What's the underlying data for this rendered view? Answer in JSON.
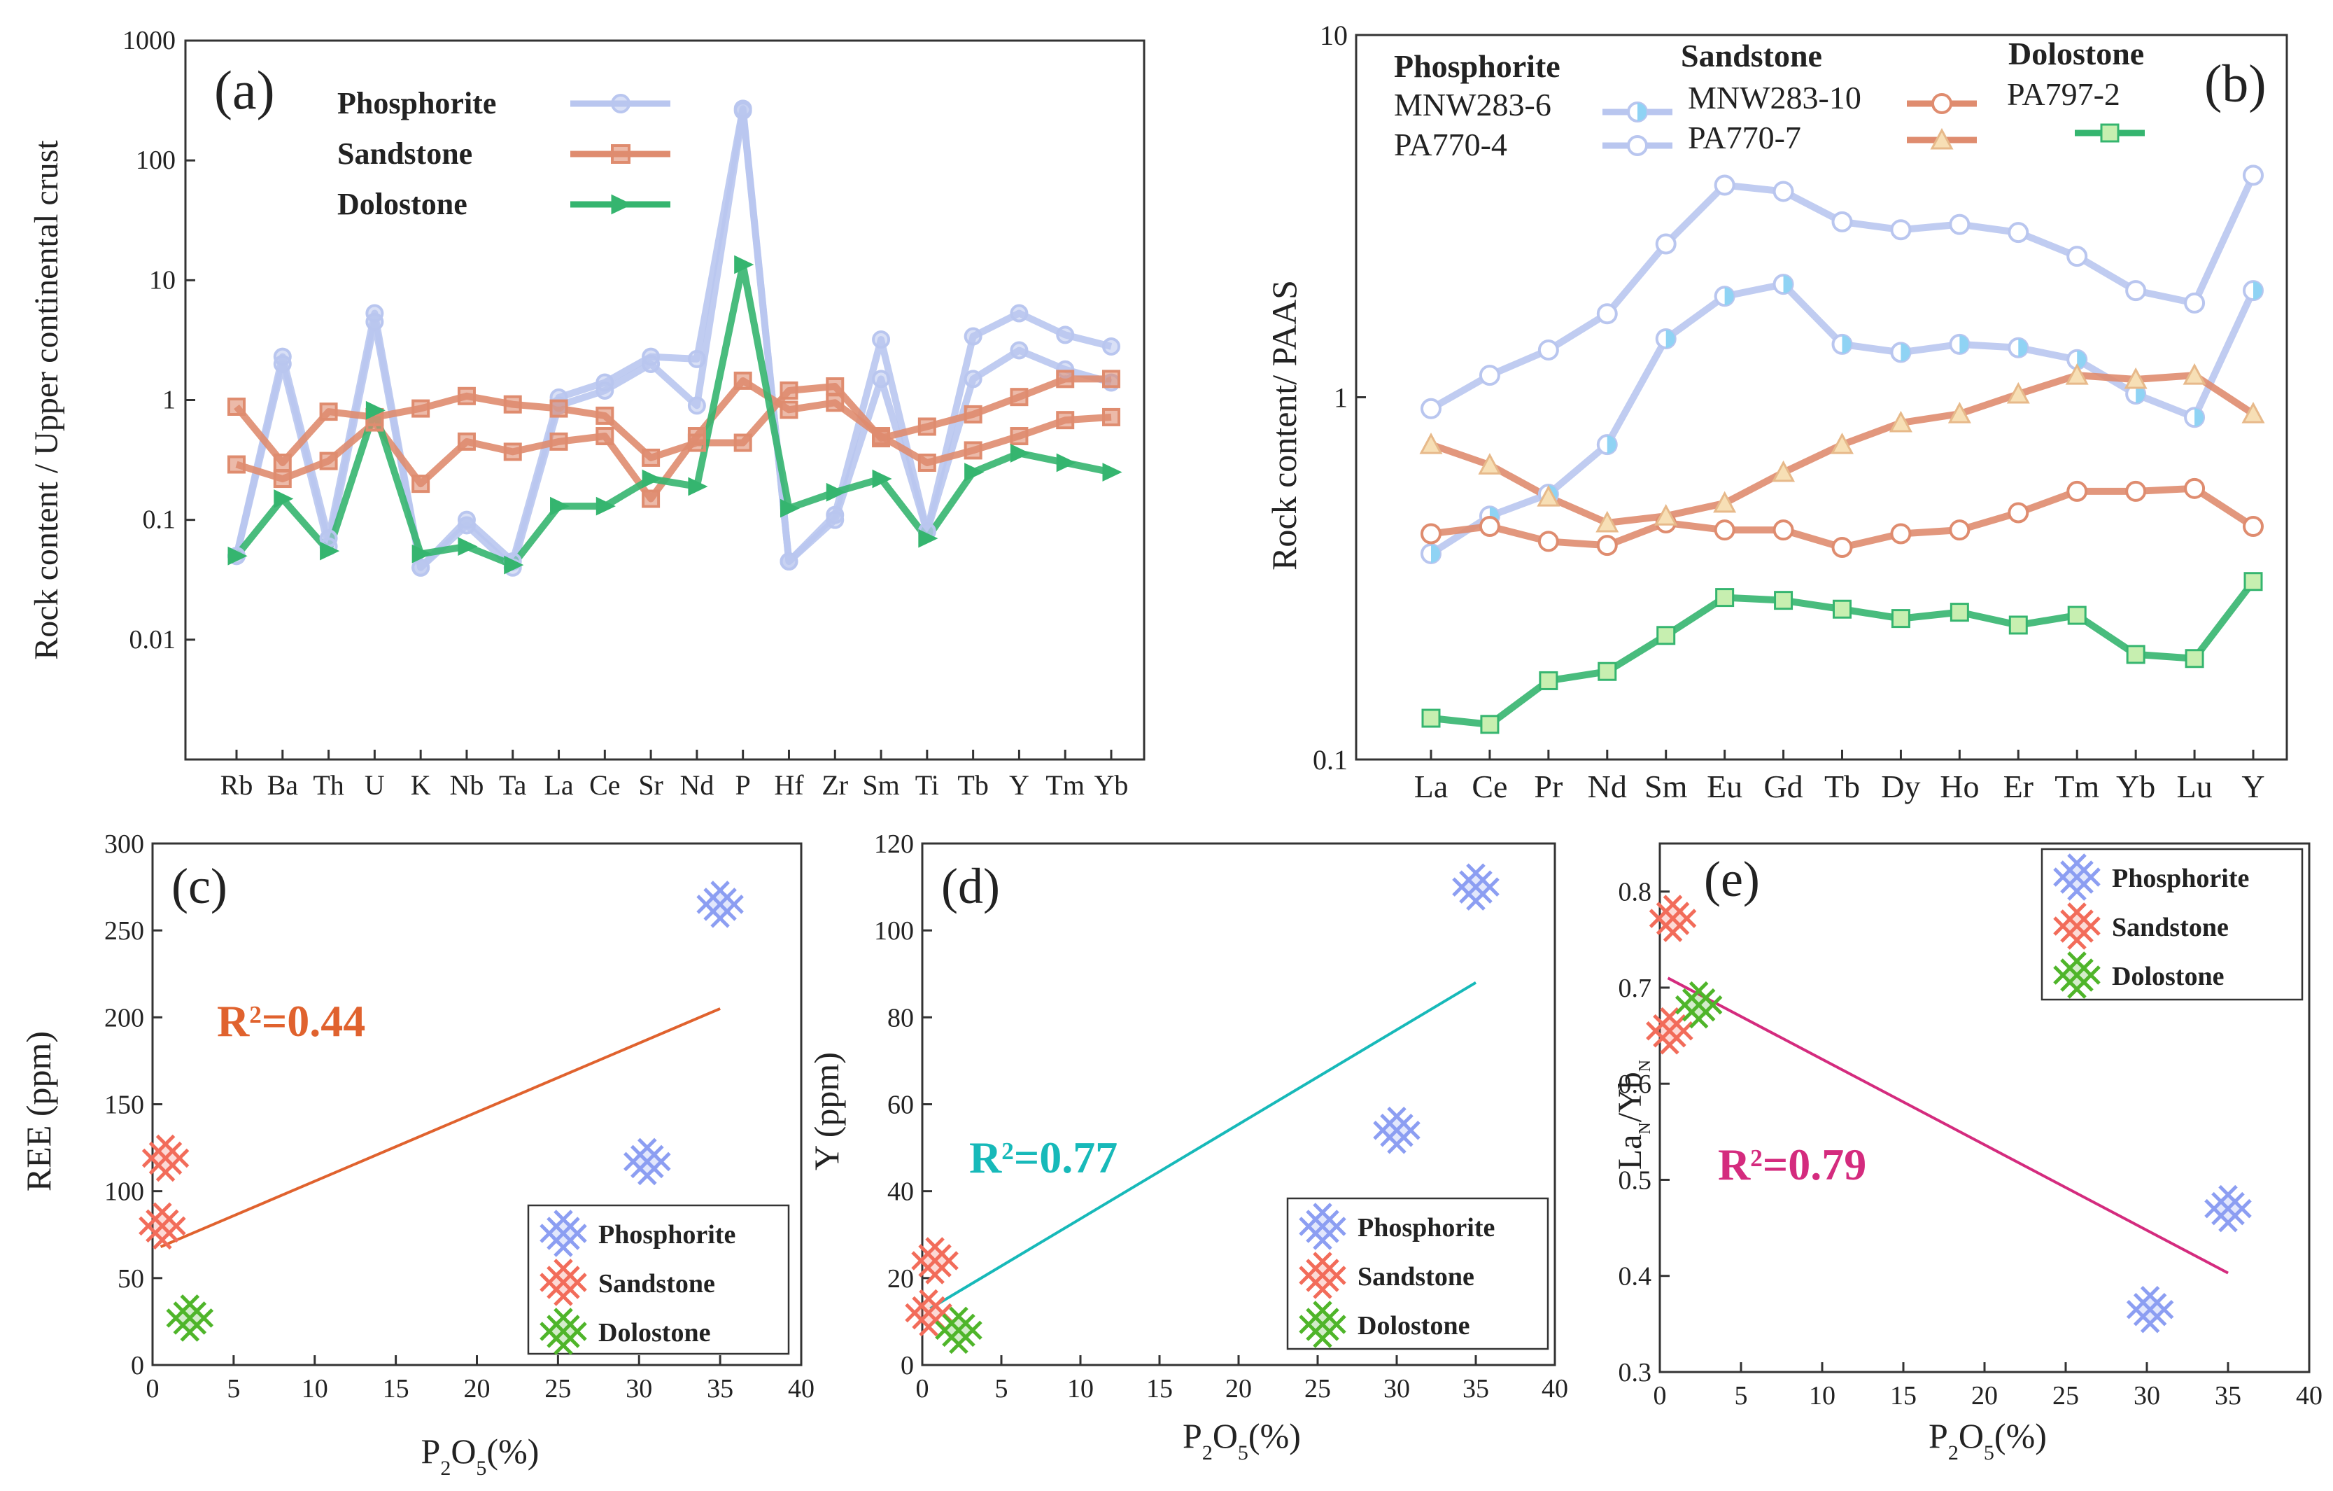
{
  "chart_data": [
    {
      "id": "a",
      "type": "line",
      "yscale": "log",
      "panel_label": "(a)",
      "ylabel": "Rock content / Upper continental crust",
      "ylim": [
        0.001,
        1000
      ],
      "yticks": [
        "0.01",
        "0.1",
        "1",
        "10",
        "100",
        "1000"
      ],
      "categories": [
        "Rb",
        "Ba",
        "Th",
        "U",
        "K",
        "Nb",
        "Ta",
        "La",
        "Ce",
        "Sr",
        "Nd",
        "P",
        "Hf",
        "Zr",
        "Sm",
        "Ti",
        "Tb",
        "Y",
        "Tm",
        "Yb"
      ],
      "legend": [
        {
          "name": "Phosphorite",
          "color": "#b9c6ef",
          "marker": "circle"
        },
        {
          "name": "Sandstone",
          "color": "#df8c6f",
          "marker": "square"
        },
        {
          "name": "Dolostone",
          "color": "#35b56f",
          "marker": "triangle"
        }
      ],
      "series": [
        {
          "name": "Phosphorite",
          "color": "#b9c6ef",
          "marker": "circle",
          "values": [
            0.05,
            2.3,
            0.07,
            5.3,
            0.04,
            0.1,
            0.045,
            1.05,
            1.4,
            2.3,
            2.2,
            270,
            0.045,
            0.11,
            3.2,
            0.08,
            3.4,
            5.3,
            3.5,
            2.8
          ]
        },
        {
          "name": "Phosphorite",
          "color": "#b9c6ef",
          "marker": "circle",
          "values": [
            0.05,
            2.0,
            0.06,
            4.5,
            0.04,
            0.09,
            0.04,
            0.9,
            1.2,
            2.0,
            0.9,
            260,
            0.045,
            0.1,
            1.5,
            0.08,
            1.5,
            2.6,
            1.8,
            1.4
          ]
        },
        {
          "name": "Sandstone",
          "color": "#df8c6f",
          "marker": "square",
          "values": [
            0.88,
            0.3,
            0.8,
            0.72,
            0.85,
            1.08,
            0.92,
            0.85,
            0.74,
            0.33,
            0.44,
            0.44,
            1.2,
            1.3,
            0.48,
            0.6,
            0.76,
            1.06,
            1.5,
            1.5
          ]
        },
        {
          "name": "Sandstone",
          "color": "#df8c6f",
          "marker": "square",
          "values": [
            0.29,
            0.22,
            0.31,
            0.65,
            0.2,
            0.45,
            0.37,
            0.45,
            0.5,
            0.15,
            0.5,
            1.45,
            0.83,
            0.95,
            0.5,
            0.3,
            0.38,
            0.5,
            0.68,
            0.72
          ]
        },
        {
          "name": "Dolostone",
          "color": "#35b56f",
          "marker": "triangle",
          "values": [
            0.05,
            0.15,
            0.055,
            0.82,
            0.052,
            0.06,
            0.042,
            0.13,
            0.13,
            0.22,
            0.19,
            13.5,
            0.125,
            0.17,
            0.22,
            0.07,
            0.25,
            0.36,
            0.3,
            0.25
          ]
        }
      ]
    },
    {
      "id": "b",
      "type": "line",
      "yscale": "log",
      "panel_label": "(b)",
      "ylabel": "Rock content/ PAAS",
      "ylim": [
        0.1,
        10
      ],
      "yticks": [
        "0.1",
        "1",
        "10"
      ],
      "categories": [
        "La",
        "Ce",
        "Pr",
        "Nd",
        "Sm",
        "Eu",
        "Gd",
        "Tb",
        "Dy",
        "Ho",
        "Er",
        "Tm",
        "Yb",
        "Lu",
        "Y"
      ],
      "legend_groups": [
        {
          "title": "Phosphorite",
          "entries": [
            "MNW283-6",
            "PA770-4"
          ]
        },
        {
          "title": "Sandstone",
          "entries": [
            "MNW283-10",
            "PA770-7"
          ]
        },
        {
          "title": "Dolostone",
          "entries": [
            "PA797-2"
          ]
        }
      ],
      "series": [
        {
          "name": "MNW283-6",
          "color": "#b9c6ef",
          "marker": "halfcircle",
          "values": [
            0.37,
            0.47,
            0.54,
            0.74,
            1.45,
            1.9,
            2.05,
            1.4,
            1.33,
            1.4,
            1.37,
            1.27,
            1.02,
            0.88,
            1.97
          ]
        },
        {
          "name": "PA770-4",
          "color": "#b9c6ef",
          "marker": "circle",
          "values": [
            0.93,
            1.15,
            1.35,
            1.7,
            2.65,
            3.85,
            3.7,
            3.05,
            2.9,
            3.0,
            2.85,
            2.45,
            1.97,
            1.82,
            4.1
          ]
        },
        {
          "name": "MNW283-10",
          "color": "#df8c6f",
          "marker": "circle",
          "values": [
            0.42,
            0.44,
            0.4,
            0.39,
            0.45,
            0.43,
            0.43,
            0.385,
            0.42,
            0.43,
            0.48,
            0.55,
            0.55,
            0.56,
            0.44
          ]
        },
        {
          "name": "PA770-7",
          "color": "#df8c6f",
          "marker": "triangle",
          "values": [
            0.74,
            0.65,
            0.53,
            0.45,
            0.47,
            0.51,
            0.62,
            0.74,
            0.85,
            0.9,
            1.02,
            1.15,
            1.12,
            1.15,
            0.9
          ]
        },
        {
          "name": "PA797-2",
          "color": "#35b56f",
          "marker": "square",
          "values": [
            0.13,
            0.125,
            0.165,
            0.175,
            0.22,
            0.28,
            0.275,
            0.26,
            0.245,
            0.255,
            0.235,
            0.25,
            0.195,
            0.19,
            0.31
          ]
        }
      ]
    },
    {
      "id": "c",
      "type": "scatter",
      "panel_label": "(c)",
      "xlabel_main": "P",
      "xlabel_sub": "2",
      "xlabel_tail": "O",
      "xlabel_sub2": "5",
      "xlabel_end": "(%)",
      "ylabel": "REE (ppm)",
      "xlim": [
        0,
        40
      ],
      "ylim": [
        0,
        300
      ],
      "xticks": [
        "0",
        "5",
        "10",
        "15",
        "20",
        "25",
        "30",
        "35",
        "40"
      ],
      "yticks": [
        "0",
        "50",
        "100",
        "150",
        "200",
        "250",
        "300"
      ],
      "r2_prefix": "R",
      "r2_sup": "2",
      "r2_value": "=0.44",
      "fit_color": "#e0622e",
      "fit": {
        "x": [
          0.5,
          35
        ],
        "y": [
          68,
          205
        ]
      },
      "legend": [
        {
          "name": "Phosphorite",
          "color": "#8c9ef2"
        },
        {
          "name": "Sandstone",
          "color": "#f26c5a"
        },
        {
          "name": "Dolostone",
          "color": "#4fb52a"
        }
      ],
      "points": [
        {
          "group": "Phosphorite",
          "x": 35,
          "y": 265
        },
        {
          "group": "Phosphorite",
          "x": 30.5,
          "y": 117
        },
        {
          "group": "Sandstone",
          "x": 0.8,
          "y": 119
        },
        {
          "group": "Sandstone",
          "x": 0.6,
          "y": 80
        },
        {
          "group": "Dolostone",
          "x": 2.3,
          "y": 27
        }
      ]
    },
    {
      "id": "d",
      "type": "scatter",
      "panel_label": "(d)",
      "xlabel_main": "P",
      "xlabel_sub": "2",
      "xlabel_tail": "O",
      "xlabel_sub2": "5",
      "xlabel_end": "(%)",
      "ylabel": "Y (ppm)",
      "xlim": [
        0,
        40
      ],
      "ylim": [
        0,
        120
      ],
      "xticks": [
        "0",
        "5",
        "10",
        "15",
        "20",
        "25",
        "30",
        "35",
        "40"
      ],
      "yticks": [
        "0",
        "20",
        "40",
        "60",
        "80",
        "100",
        "120"
      ],
      "r2_prefix": "R",
      "r2_sup": "2",
      "r2_value": "=0.77",
      "fit_color": "#17b9b9",
      "fit": {
        "x": [
          0.5,
          35
        ],
        "y": [
          13,
          88
        ]
      },
      "legend": [
        {
          "name": "Phosphorite",
          "color": "#8c9ef2"
        },
        {
          "name": "Sandstone",
          "color": "#f26c5a"
        },
        {
          "name": "Dolostone",
          "color": "#4fb52a"
        }
      ],
      "points": [
        {
          "group": "Phosphorite",
          "x": 35,
          "y": 110
        },
        {
          "group": "Phosphorite",
          "x": 30,
          "y": 54
        },
        {
          "group": "Sandstone",
          "x": 0.8,
          "y": 24
        },
        {
          "group": "Sandstone",
          "x": 0.4,
          "y": 12
        },
        {
          "group": "Dolostone",
          "x": 2.3,
          "y": 8
        }
      ]
    },
    {
      "id": "e",
      "type": "scatter",
      "panel_label": "(e)",
      "xlabel_main": "P",
      "xlabel_sub": "2",
      "xlabel_tail": "O",
      "xlabel_sub2": "5",
      "xlabel_end": "(%)",
      "ylabel_a": "La",
      "ylabel_a_sub": "N",
      "ylabel_b": "/Yb",
      "ylabel_b_sub": "N",
      "xlim": [
        0,
        40
      ],
      "ylim": [
        0.3,
        0.85
      ],
      "xticks": [
        "0",
        "5",
        "10",
        "15",
        "20",
        "25",
        "30",
        "35",
        "40"
      ],
      "yticks": [
        "0.3",
        "0.4",
        "0.5",
        "0.6",
        "0.7",
        "0.8"
      ],
      "r2_prefix": "R",
      "r2_sup": "2",
      "r2_value": "=0.79",
      "fit_color": "#d42b7e",
      "fit": {
        "x": [
          0.5,
          35
        ],
        "y": [
          0.71,
          0.403
        ]
      },
      "legend": [
        {
          "name": "Phosphorite",
          "color": "#8c9ef2"
        },
        {
          "name": "Sandstone",
          "color": "#f26c5a"
        },
        {
          "name": "Dolostone",
          "color": "#4fb52a"
        }
      ],
      "points": [
        {
          "group": "Phosphorite",
          "x": 35,
          "y": 0.47
        },
        {
          "group": "Phosphorite",
          "x": 30.2,
          "y": 0.365
        },
        {
          "group": "Sandstone",
          "x": 0.8,
          "y": 0.772
        },
        {
          "group": "Sandstone",
          "x": 0.6,
          "y": 0.655
        },
        {
          "group": "Dolostone",
          "x": 2.4,
          "y": 0.682
        }
      ]
    }
  ]
}
